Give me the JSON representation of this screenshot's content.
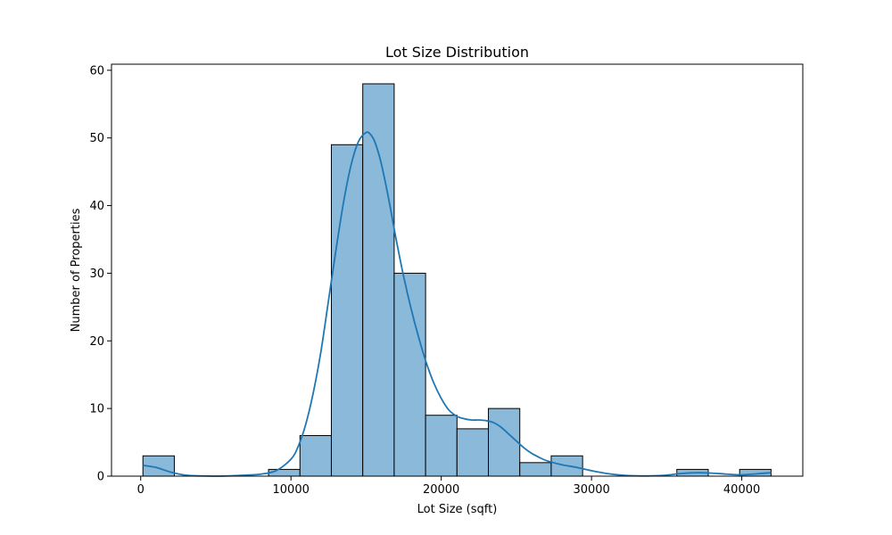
{
  "chart_data": {
    "type": "bar",
    "title": "Lot Size Distribution",
    "xlabel": "Lot Size (sqft)",
    "ylabel": "Number of Properties",
    "xlim": [
      -1943,
      44061
    ],
    "ylim": [
      0,
      60.9
    ],
    "xticks": [
      0,
      10000,
      20000,
      30000,
      40000
    ],
    "xtick_labels": [
      "0",
      "10000",
      "20000",
      "30000",
      "40000"
    ],
    "yticks": [
      0,
      10,
      20,
      30,
      40,
      50,
      60
    ],
    "ytick_labels": [
      "0",
      "10",
      "20",
      "30",
      "40",
      "50",
      "60"
    ],
    "grid": false,
    "legend": null,
    "bins": [
      {
        "x0": 148,
        "x1": 2238,
        "count": 3
      },
      {
        "x0": 2238,
        "x1": 4328,
        "count": 0
      },
      {
        "x0": 4328,
        "x1": 6418,
        "count": 0
      },
      {
        "x0": 6418,
        "x1": 8508,
        "count": 0
      },
      {
        "x0": 8508,
        "x1": 10598,
        "count": 1
      },
      {
        "x0": 10598,
        "x1": 12688,
        "count": 6
      },
      {
        "x0": 12688,
        "x1": 14778,
        "count": 49
      },
      {
        "x0": 14778,
        "x1": 16868,
        "count": 58
      },
      {
        "x0": 16868,
        "x1": 18958,
        "count": 30
      },
      {
        "x0": 18958,
        "x1": 21048,
        "count": 9
      },
      {
        "x0": 21048,
        "x1": 23138,
        "count": 7
      },
      {
        "x0": 23138,
        "x1": 25228,
        "count": 10
      },
      {
        "x0": 25228,
        "x1": 27318,
        "count": 2
      },
      {
        "x0": 27318,
        "x1": 29408,
        "count": 3
      },
      {
        "x0": 29408,
        "x1": 31498,
        "count": 0
      },
      {
        "x0": 31498,
        "x1": 33588,
        "count": 0
      },
      {
        "x0": 33588,
        "x1": 35678,
        "count": 0
      },
      {
        "x0": 35678,
        "x1": 37768,
        "count": 1
      },
      {
        "x0": 37768,
        "x1": 39858,
        "count": 0
      },
      {
        "x0": 39858,
        "x1": 41948,
        "count": 1
      }
    ],
    "kde": {
      "x": [
        148,
        1000,
        2000,
        3000,
        4000,
        5000,
        6000,
        7000,
        8000,
        9000,
        10000,
        10500,
        11000,
        11500,
        12000,
        12500,
        13000,
        13500,
        14000,
        14500,
        15000,
        15300,
        15600,
        16000,
        16500,
        17000,
        17500,
        18000,
        18500,
        19000,
        19500,
        20000,
        20500,
        21000,
        21500,
        22000,
        22500,
        23000,
        23500,
        24000,
        24500,
        25000,
        25500,
        26000,
        26500,
        27000,
        28000,
        29000,
        30000,
        31000,
        32000,
        33000,
        34000,
        35000,
        36000,
        37000,
        38000,
        39000,
        40000,
        41000,
        41948
      ],
      "y": [
        1.6,
        1.3,
        0.6,
        0.15,
        0.03,
        0.0,
        0.05,
        0.15,
        0.3,
        0.8,
        2.5,
        4.5,
        7.8,
        12.5,
        18.5,
        26.0,
        33.5,
        40.5,
        46.0,
        49.5,
        50.8,
        50.5,
        49.3,
        46.3,
        41.0,
        35.0,
        29.5,
        24.7,
        20.5,
        16.8,
        13.8,
        11.5,
        9.8,
        8.9,
        8.5,
        8.3,
        8.3,
        8.2,
        7.9,
        7.2,
        6.2,
        5.2,
        4.2,
        3.4,
        2.8,
        2.3,
        1.7,
        1.3,
        0.8,
        0.4,
        0.15,
        0.05,
        0.05,
        0.15,
        0.4,
        0.5,
        0.45,
        0.3,
        0.2,
        0.35,
        0.5
      ]
    },
    "colors": {
      "bar_fill": "#8ab9da",
      "bar_edge": "#000000",
      "kde_line": "#1f77b4",
      "axes": "#000000",
      "background": "#ffffff"
    }
  }
}
